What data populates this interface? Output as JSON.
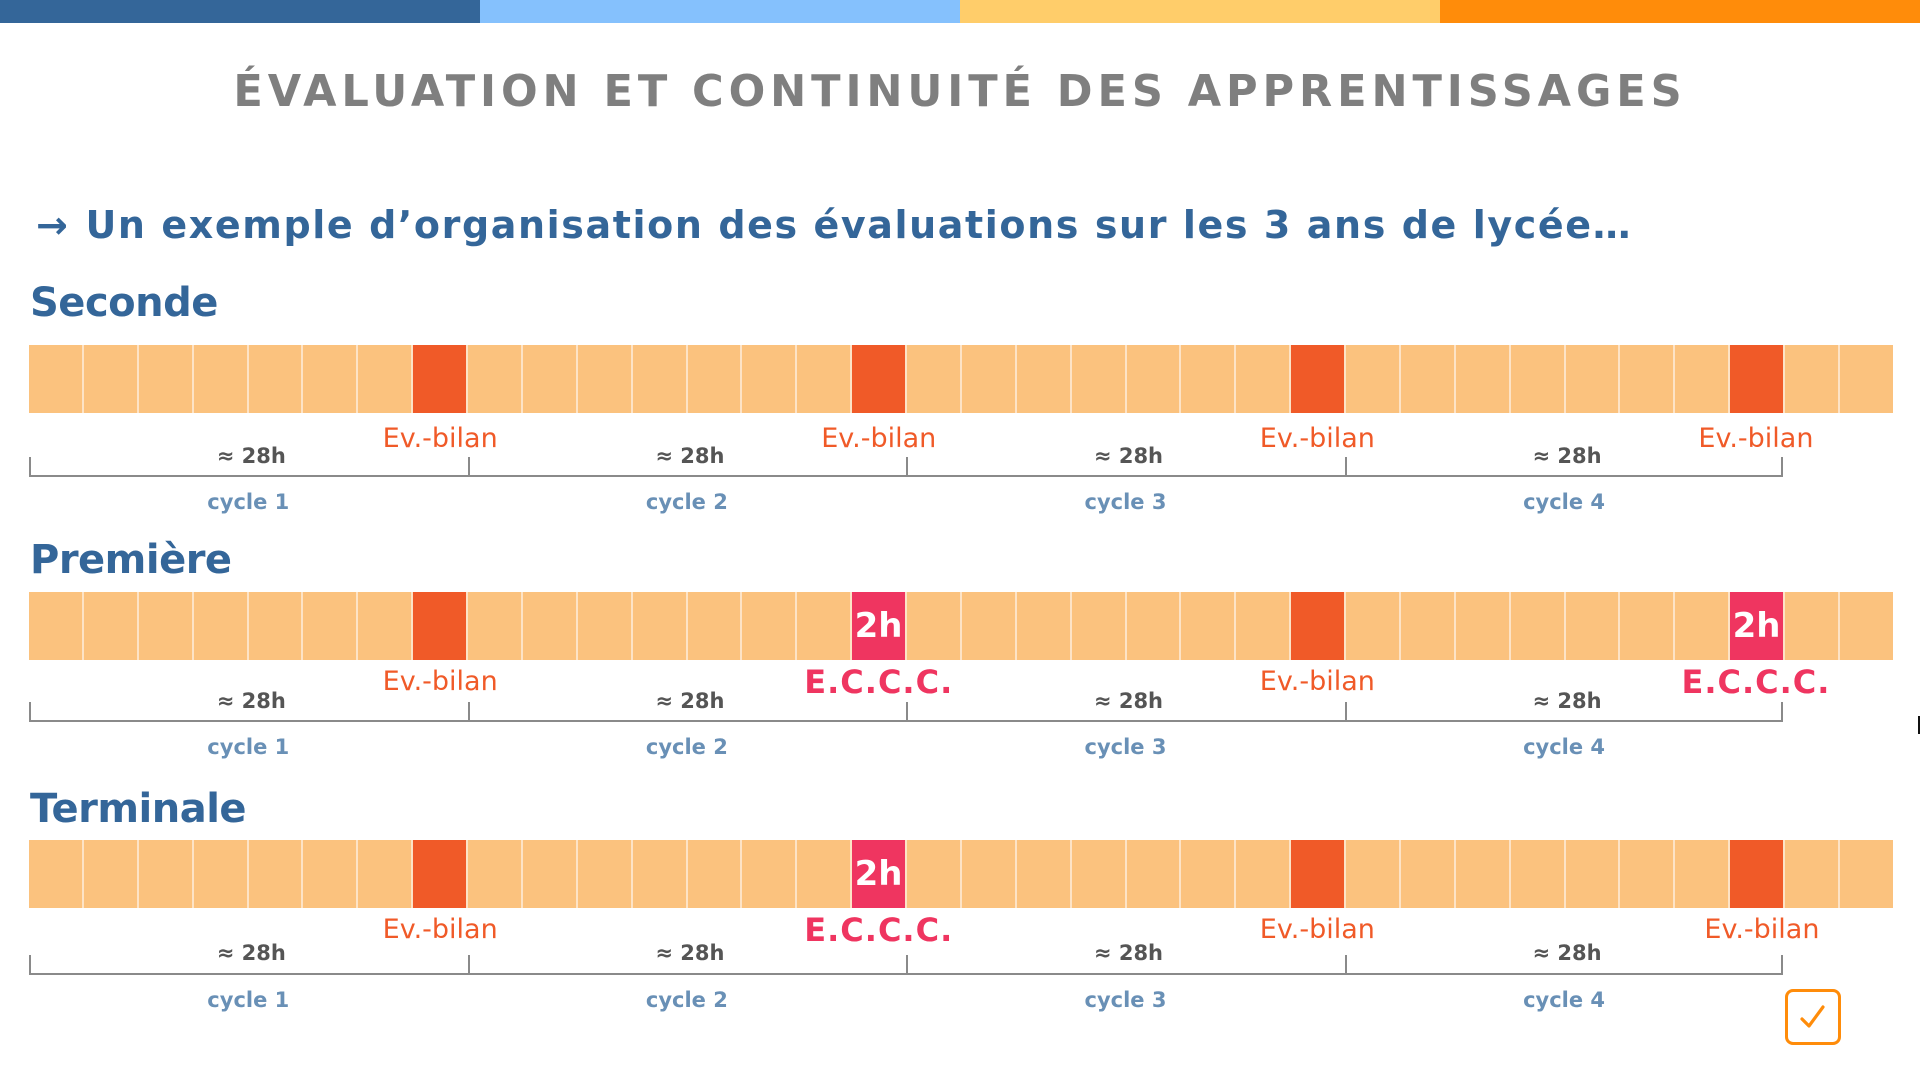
{
  "colors": {
    "topbar": [
      "#346699",
      "#85c1fd",
      "#ffcd6a",
      "#ff8c0a"
    ],
    "cell_default": "#fbc27e",
    "cell_bilan": "#f05a28",
    "cell_eccc": "#ef3560",
    "label_bilan": "#f05a28",
    "label_eccc": "#ef3560",
    "check": "#ff8c0a"
  },
  "header": {
    "title": "ÉVALUATION ET CONTINUITÉ DES APPRENTISSAGES",
    "subtitle_arrow": "→",
    "subtitle": "Un exemple d’organisation des évaluations sur les 3 ans de lycée…"
  },
  "timeline": {
    "cell_count": 34,
    "cycles_span_cells": 32,
    "hours_label": "≈ 28h",
    "cycle_labels": [
      "cycle 1",
      "cycle 2",
      "cycle 3",
      "cycle 4"
    ]
  },
  "levels": [
    {
      "name": "Seconde",
      "markers": [
        {
          "cell": 7,
          "type": "bilan",
          "cell_text": "",
          "label": "Ev.-bilan"
        },
        {
          "cell": 15,
          "type": "bilan",
          "cell_text": "",
          "label": "Ev.-bilan"
        },
        {
          "cell": 23,
          "type": "bilan",
          "cell_text": "",
          "label": "Ev.-bilan"
        },
        {
          "cell": 31,
          "type": "bilan",
          "cell_text": "",
          "label": "Ev.-bilan"
        }
      ]
    },
    {
      "name": "Première",
      "markers": [
        {
          "cell": 7,
          "type": "bilan",
          "cell_text": "",
          "label": "Ev.-bilan"
        },
        {
          "cell": 15,
          "type": "eccc",
          "cell_text": "2h",
          "label": "E.C.C.C."
        },
        {
          "cell": 23,
          "type": "bilan",
          "cell_text": "",
          "label": "Ev.-bilan"
        },
        {
          "cell": 31,
          "type": "eccc",
          "cell_text": "2h",
          "label": "E.C.C.C."
        }
      ]
    },
    {
      "name": "Terminale",
      "markers": [
        {
          "cell": 7,
          "type": "bilan",
          "cell_text": "",
          "label": "Ev.-bilan"
        },
        {
          "cell": 15,
          "type": "eccc",
          "cell_text": "2h",
          "label": "E.C.C.C."
        },
        {
          "cell": 23,
          "type": "bilan",
          "cell_text": "",
          "label": "Ev.-bilan"
        },
        {
          "cell": 31,
          "type": "bilan",
          "cell_text": "",
          "label": "Ev.-bilan"
        }
      ]
    }
  ],
  "footer": {
    "check_icon": "✓"
  }
}
